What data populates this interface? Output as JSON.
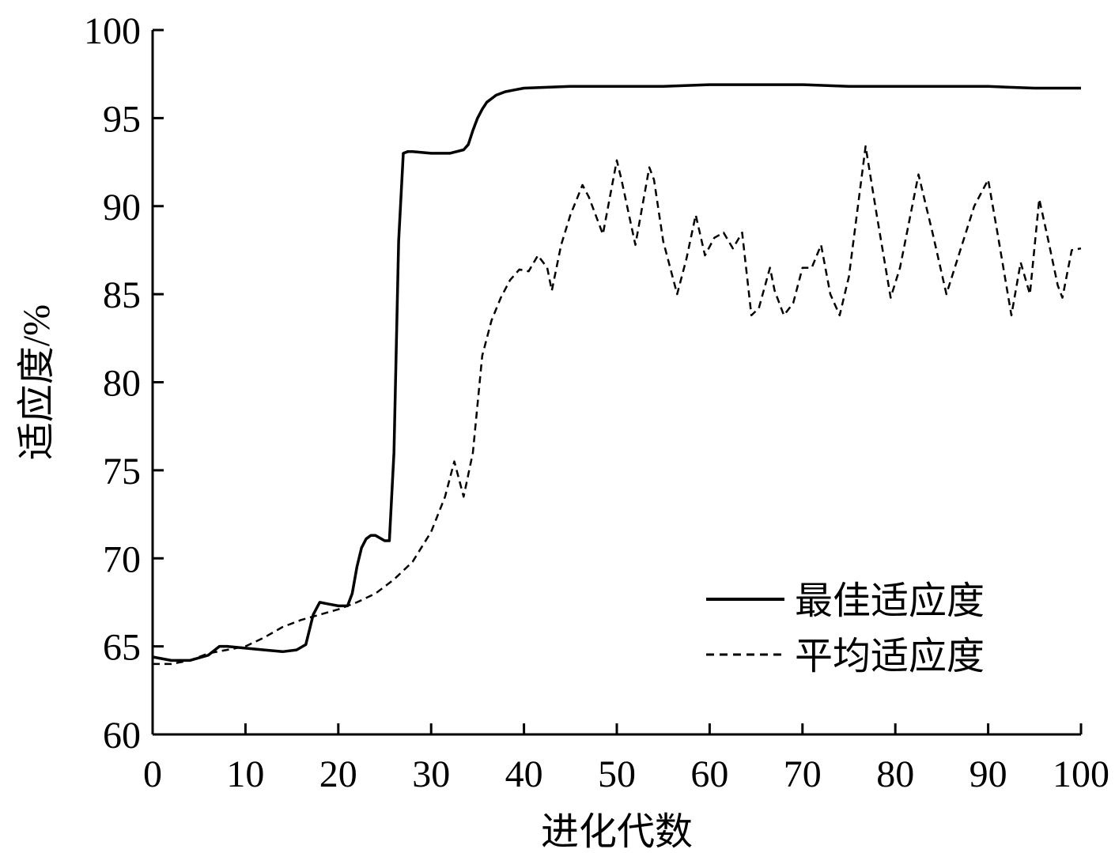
{
  "chart_data": {
    "type": "line",
    "title": "",
    "xlabel": "进化代数",
    "ylabel": "适应度/%",
    "xlim": [
      0,
      100
    ],
    "ylim": [
      60,
      100
    ],
    "xticks": [
      0,
      10,
      20,
      30,
      40,
      50,
      60,
      70,
      80,
      90,
      100
    ],
    "yticks": [
      60,
      65,
      70,
      75,
      80,
      85,
      90,
      95,
      100
    ],
    "grid": false,
    "legend_position": "lower-right",
    "series": [
      {
        "name": "最佳适应度",
        "style": "solid",
        "color": "#000000",
        "x": [
          0,
          2,
          4,
          6,
          7.2,
          8,
          10,
          12,
          14,
          15.5,
          16.5,
          17.3,
          18,
          19,
          20,
          21,
          21.5,
          22,
          22.5,
          23,
          23.5,
          24,
          25,
          25.5,
          26,
          26.5,
          27,
          27.5,
          28,
          30,
          32,
          33.5,
          34,
          34.5,
          35,
          35.5,
          36,
          37,
          38,
          39,
          40,
          45,
          50,
          55,
          60,
          65,
          70,
          75,
          80,
          85,
          90,
          95,
          100
        ],
        "values": [
          64.4,
          64.2,
          64.2,
          64.5,
          65.0,
          65.0,
          64.9,
          64.8,
          64.7,
          64.8,
          65.1,
          66.8,
          67.5,
          67.4,
          67.3,
          67.3,
          68.0,
          69.5,
          70.6,
          71.1,
          71.3,
          71.3,
          71.0,
          71.0,
          76.0,
          88.0,
          93.0,
          93.1,
          93.1,
          93.0,
          93.0,
          93.2,
          93.5,
          94.3,
          95.0,
          95.5,
          95.9,
          96.3,
          96.5,
          96.6,
          96.7,
          96.8,
          96.8,
          96.8,
          96.9,
          96.9,
          96.9,
          96.8,
          96.8,
          96.8,
          96.8,
          96.7,
          96.7
        ]
      },
      {
        "name": "平均适应度",
        "style": "dashed",
        "color": "#000000",
        "x": [
          0,
          2,
          4,
          6,
          8,
          10,
          12,
          14,
          16,
          18,
          20,
          22,
          24,
          26,
          28,
          30,
          31.5,
          32.5,
          33.5,
          34.5,
          35.5,
          36.5,
          37.5,
          38.5,
          39.5,
          40.5,
          41.5,
          42.5,
          43,
          44,
          45,
          46.3,
          47,
          48.5,
          50,
          50.5,
          52,
          53.5,
          54,
          55,
          56.5,
          57.5,
          58.5,
          59.5,
          60.5,
          61.5,
          62.5,
          63.5,
          64.5,
          65.3,
          66.5,
          67,
          68,
          69,
          70,
          71,
          72,
          73,
          74,
          75,
          76.8,
          78,
          79.5,
          80.5,
          82.5,
          84,
          85.5,
          87,
          88.5,
          90,
          91,
          92.5,
          93.5,
          94.5,
          95.5,
          96.5,
          97.5,
          98,
          99,
          100
        ],
        "values": [
          64.0,
          64.0,
          64.2,
          64.6,
          64.8,
          65.0,
          65.5,
          66.1,
          66.5,
          66.8,
          67.1,
          67.5,
          68.0,
          68.8,
          69.8,
          71.5,
          73.5,
          75.5,
          73.5,
          76.0,
          81.5,
          83.5,
          84.8,
          85.8,
          86.4,
          86.3,
          87.2,
          86.5,
          85.2,
          87.8,
          89.5,
          91.2,
          90.5,
          88.4,
          92.6,
          91.5,
          87.8,
          92.2,
          91.5,
          88.0,
          85.0,
          87.0,
          89.5,
          87.2,
          88.2,
          88.5,
          87.6,
          88.5,
          83.8,
          84.2,
          86.5,
          85.2,
          83.8,
          84.5,
          86.5,
          86.5,
          87.8,
          85.0,
          83.8,
          86.0,
          93.4,
          89.5,
          84.8,
          86.5,
          91.8,
          88.5,
          85.0,
          87.5,
          90.0,
          91.5,
          88.5,
          83.8,
          86.8,
          85.0,
          90.4,
          88.0,
          85.5,
          84.8,
          87.5,
          87.6
        ]
      }
    ]
  }
}
